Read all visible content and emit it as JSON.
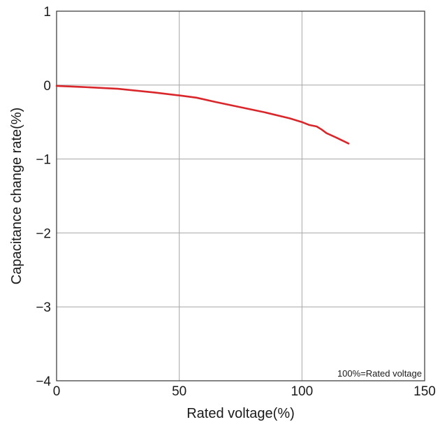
{
  "chart_data": {
    "type": "line",
    "xlabel": "Rated voltage(%)",
    "ylabel": "Capacitance change rate(%)",
    "xlim": [
      0,
      150
    ],
    "ylim": [
      -4,
      1
    ],
    "x_ticks": [
      0,
      50,
      100,
      150
    ],
    "y_ticks": [
      1,
      0,
      -1,
      -2,
      -3,
      -4
    ],
    "x_tick_labels": [
      "0",
      "50",
      "100",
      "150"
    ],
    "y_tick_labels": [
      "1",
      "0",
      "−1",
      "−2",
      "−3",
      "−4"
    ],
    "grid": true,
    "annotation": "100%=Rated voltage",
    "series": [
      {
        "color": "#d9262b",
        "x": [
          0,
          10,
          25,
          40,
          50,
          57,
          65,
          75,
          85,
          95,
          100,
          103,
          106,
          108,
          110,
          114,
          119
        ],
        "y": [
          -0.01,
          -0.025,
          -0.05,
          -0.1,
          -0.14,
          -0.17,
          -0.23,
          -0.3,
          -0.37,
          -0.45,
          -0.5,
          -0.54,
          -0.56,
          -0.6,
          -0.65,
          -0.71,
          -0.79
        ]
      }
    ]
  }
}
